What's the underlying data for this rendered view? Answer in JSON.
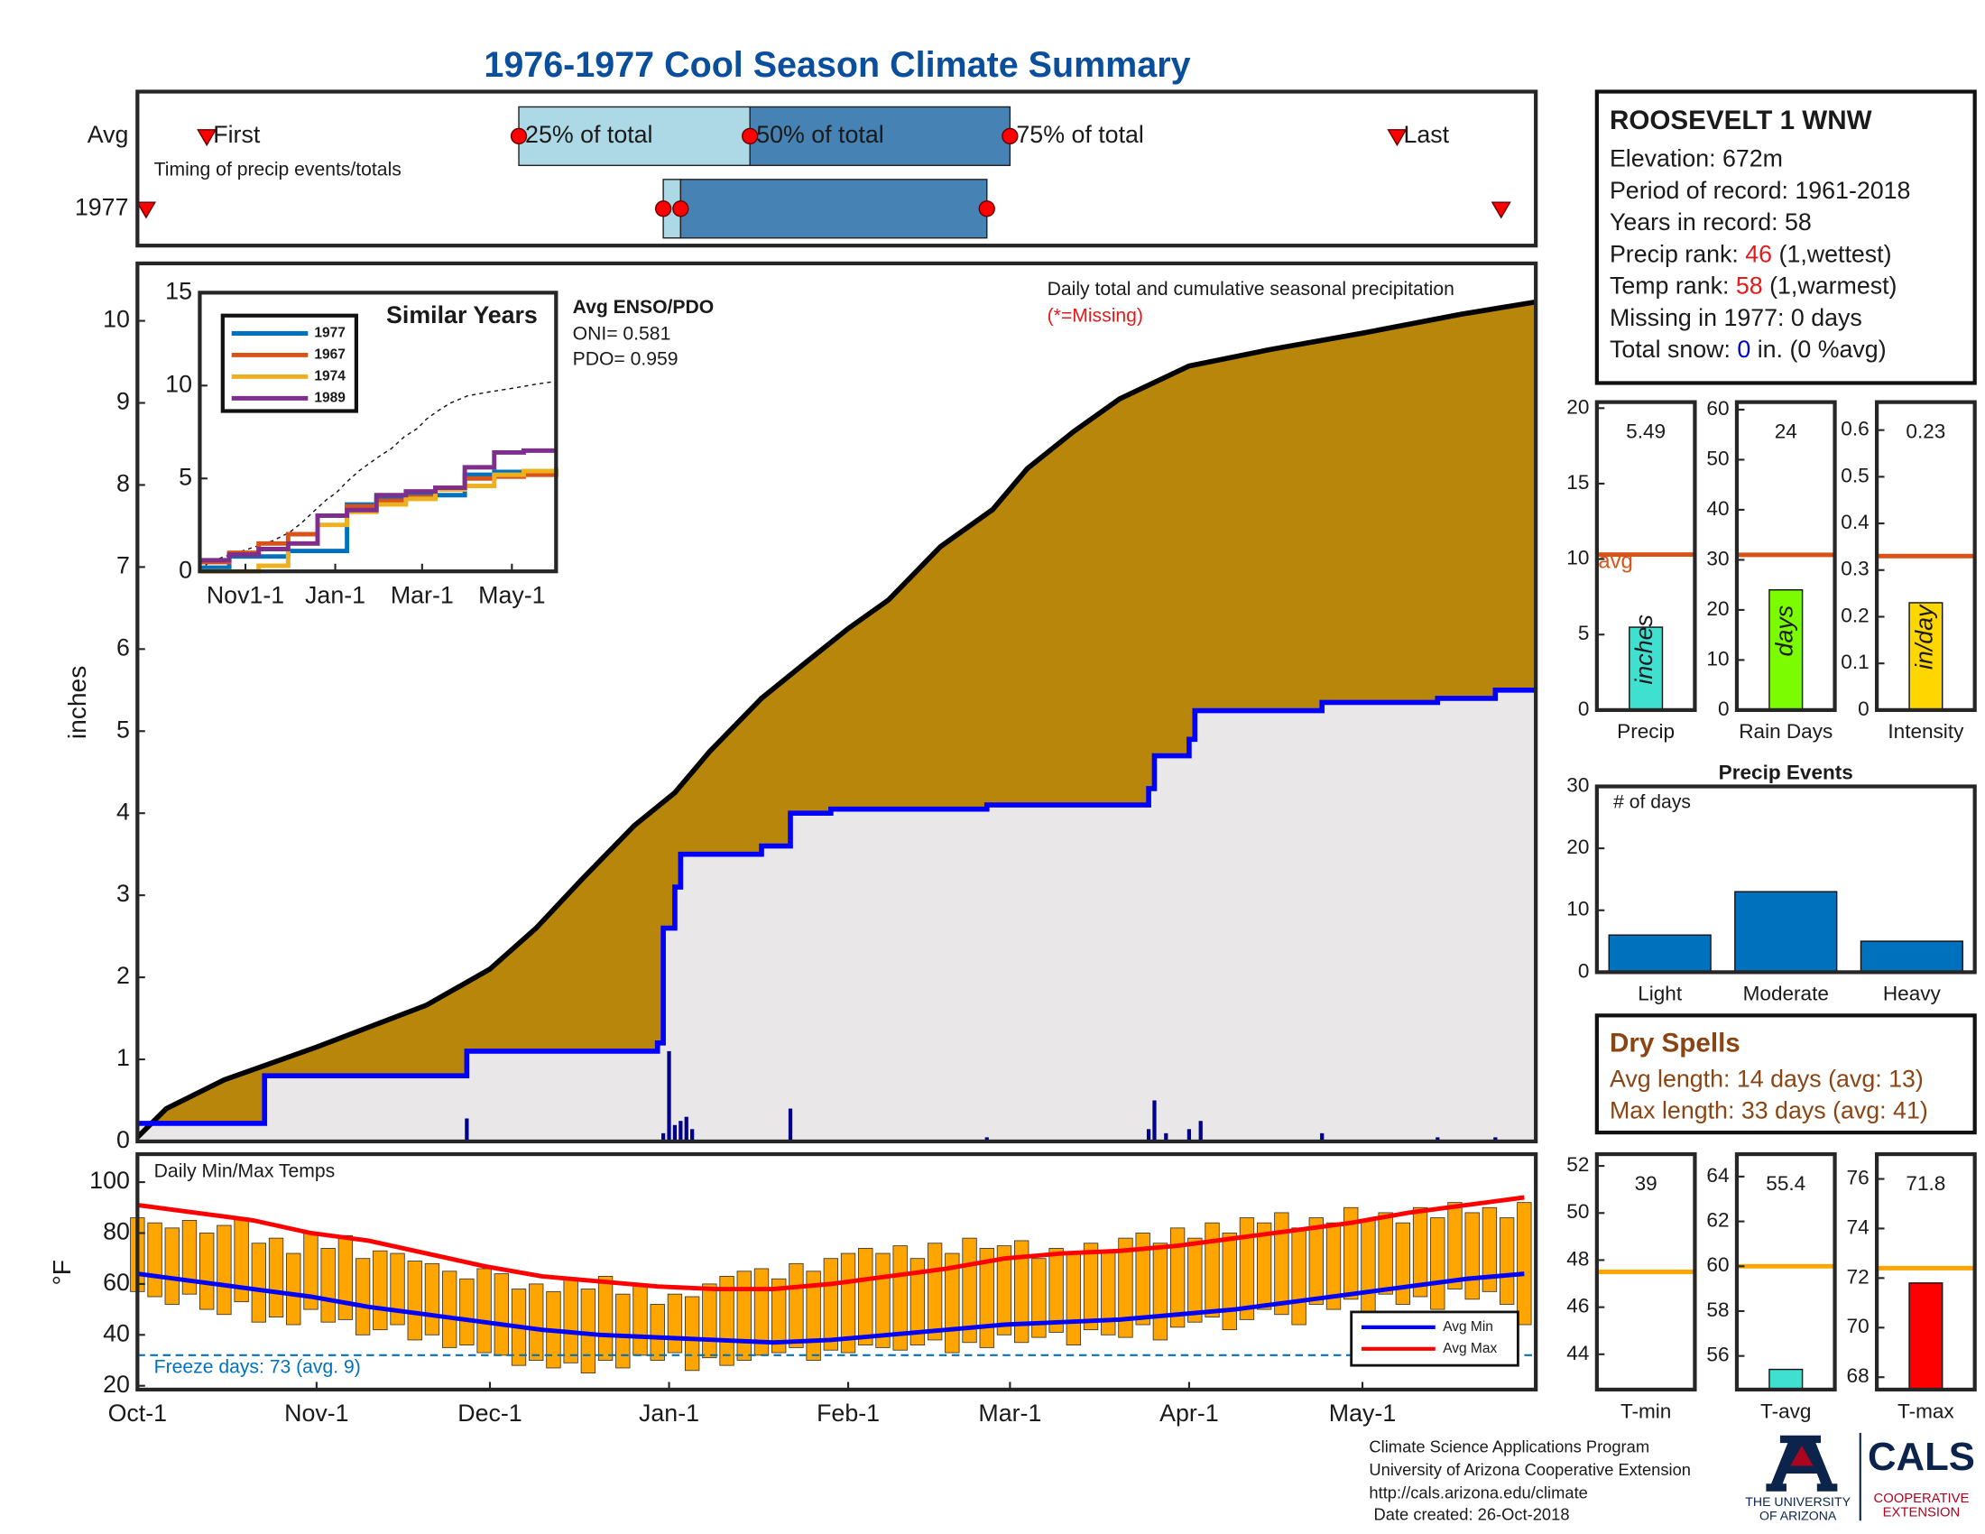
{
  "title": "1976-1977 Cool Season Climate Summary",
  "chart_data": [
    {
      "type": "timing",
      "annotation": "Timing of precip events/totals",
      "xlim": [
        0,
        242
      ],
      "marker_labels": [
        "First",
        "25% of total",
        "50% of total",
        "75% of total",
        "Last"
      ],
      "rows": [
        {
          "label": "Avg",
          "values": [
            12,
            66,
            106,
            151,
            218
          ]
        },
        {
          "label": "1977",
          "values": [
            1.5,
            91,
            94,
            147,
            236
          ]
        }
      ],
      "colors": [
        "#add8e6",
        "#4682b4",
        "#ff0000"
      ]
    },
    {
      "type": "area",
      "annotation": "Daily total and cumulative seasonal precipitation",
      "note": "(*=Missing)",
      "ylabel": "inches",
      "xlim": [
        0,
        242
      ],
      "ylim": [
        0,
        10.7
      ],
      "yticks": [
        0,
        1,
        2,
        3,
        4,
        5,
        6,
        7,
        8,
        9,
        10
      ],
      "cumulative_avg": {
        "color": "#b8860b",
        "x": [
          0,
          5,
          15,
          31,
          50,
          61,
          69,
          77,
          86,
          93,
          99,
          108,
          115,
          123,
          130,
          139,
          148,
          154,
          162,
          170,
          182,
          196,
          212,
          229,
          242
        ],
        "values": [
          0.05,
          0.4,
          0.75,
          1.15,
          1.66,
          2.1,
          2.6,
          3.2,
          3.85,
          4.25,
          4.75,
          5.4,
          5.8,
          6.25,
          6.6,
          7.25,
          7.7,
          8.2,
          8.65,
          9.05,
          9.45,
          9.65,
          9.85,
          10.08,
          10.23
        ]
      },
      "cumulative_1977": {
        "color": "#0000ff",
        "x": [
          0,
          22,
          57,
          90,
          91,
          93,
          94,
          108,
          113,
          120,
          147,
          175,
          176,
          182,
          183,
          205,
          225,
          235
        ],
        "values": [
          0.22,
          0.8,
          1.1,
          1.2,
          2.6,
          3.1,
          3.5,
          3.6,
          4.0,
          4.05,
          4.1,
          4.3,
          4.7,
          4.9,
          5.25,
          5.35,
          5.4,
          5.5
        ]
      },
      "daily": {
        "color": "#00008b",
        "x": [
          57,
          91,
          92,
          93,
          94,
          95,
          96,
          113,
          147,
          175,
          176,
          178,
          182,
          184,
          205,
          225,
          235
        ],
        "values": [
          0.28,
          0.1,
          1.1,
          0.2,
          0.25,
          0.3,
          0.15,
          0.4,
          0.05,
          0.15,
          0.5,
          0.1,
          0.15,
          0.25,
          0.1,
          0.05,
          0.05
        ]
      }
    },
    {
      "type": "line",
      "title": "Similar Years",
      "xlim": [
        0,
        242
      ],
      "ylim": [
        0,
        15
      ],
      "yticks": [
        0,
        5,
        10,
        15
      ],
      "xticks": [
        {
          "value": 31,
          "label": "Nov1-1"
        },
        {
          "value": 92,
          "label": "Jan-1"
        },
        {
          "value": 151,
          "label": "Mar-1"
        },
        {
          "value": 212,
          "label": "May-1"
        }
      ],
      "x": [
        0,
        20,
        40,
        60,
        80,
        100,
        120,
        140,
        160,
        180,
        200,
        220,
        242
      ],
      "series": [
        {
          "name": "1977",
          "color": "#0072bd",
          "values": [
            0.2,
            0.8,
            0.8,
            1.1,
            1.1,
            3.6,
            4.0,
            4.1,
            4.1,
            5.2,
            5.35,
            5.4,
            5.5
          ]
        },
        {
          "name": "1967",
          "color": "#d95319",
          "values": [
            0.5,
            1.0,
            1.5,
            2.0,
            3.0,
            3.5,
            3.8,
            4.0,
            4.5,
            5.0,
            5.1,
            5.2,
            5.3
          ]
        },
        {
          "name": "1974",
          "color": "#edb120",
          "values": [
            0,
            0,
            0.3,
            1.5,
            2.5,
            3.2,
            3.6,
            3.9,
            4.4,
            4.6,
            5.2,
            5.4,
            5.6
          ]
        },
        {
          "name": "1989",
          "color": "#7e2f8e",
          "values": [
            0.6,
            0.9,
            1.2,
            1.5,
            3.0,
            3.3,
            4.1,
            4.3,
            4.5,
            5.6,
            6.4,
            6.5,
            6.5
          ]
        }
      ],
      "enso": {
        "title": "Avg ENSO/PDO",
        "lines": [
          "ONI= 0.581",
          "PDO= 0.959"
        ]
      }
    },
    {
      "type": "range_bar",
      "title": "Daily Min/Max Temps",
      "ylabel": "°F",
      "xlim": [
        0,
        242
      ],
      "ylim": [
        18.5,
        111
      ],
      "yticks": [
        20,
        40,
        60,
        80,
        100
      ],
      "xticks": [
        {
          "value": 0,
          "label": "Oct-1"
        },
        {
          "value": 31,
          "label": "Nov-1"
        },
        {
          "value": 61,
          "label": "Dec-1"
        },
        {
          "value": 92,
          "label": "Jan-1"
        },
        {
          "value": 123,
          "label": "Feb-1"
        },
        {
          "value": 151,
          "label": "Mar-1"
        },
        {
          "value": 182,
          "label": "Apr-1"
        },
        {
          "value": 212,
          "label": "May-1"
        }
      ],
      "bar_color": "#ffa500",
      "x": [
        0,
        3,
        6,
        9,
        12,
        15,
        18,
        21,
        24,
        27,
        30,
        33,
        36,
        39,
        42,
        45,
        48,
        51,
        54,
        57,
        60,
        63,
        66,
        69,
        72,
        75,
        78,
        81,
        84,
        87,
        90,
        93,
        96,
        99,
        102,
        105,
        108,
        111,
        114,
        117,
        120,
        123,
        126,
        129,
        132,
        135,
        138,
        141,
        144,
        147,
        150,
        153,
        156,
        159,
        162,
        165,
        168,
        171,
        174,
        177,
        180,
        183,
        186,
        189,
        192,
        195,
        198,
        201,
        204,
        207,
        210,
        213,
        216,
        219,
        222,
        225,
        228,
        231,
        234,
        237,
        240
      ],
      "min": [
        57,
        55,
        52,
        56,
        50,
        48,
        53,
        45,
        47,
        44,
        50,
        45,
        46,
        40,
        42,
        44,
        38,
        40,
        35,
        36,
        33,
        32,
        28,
        30,
        27,
        29,
        25,
        30,
        27,
        32,
        30,
        33,
        26,
        31,
        28,
        30,
        32,
        33,
        35,
        30,
        34,
        33,
        36,
        35,
        34,
        36,
        38,
        33,
        37,
        35,
        40,
        37,
        39,
        41,
        36,
        42,
        40,
        39,
        44,
        38,
        43,
        45,
        47,
        42,
        46,
        50,
        48,
        44,
        52,
        50,
        54,
        48,
        56,
        52,
        55,
        50,
        58,
        54,
        57,
        52,
        44
      ],
      "max": [
        86,
        84,
        82,
        85,
        80,
        83,
        86,
        76,
        78,
        72,
        80,
        74,
        79,
        70,
        73,
        72,
        69,
        68,
        65,
        62,
        66,
        64,
        58,
        60,
        57,
        62,
        58,
        63,
        56,
        60,
        52,
        56,
        55,
        60,
        63,
        65,
        66,
        62,
        68,
        65,
        70,
        72,
        74,
        72,
        75,
        70,
        76,
        72,
        78,
        74,
        75,
        77,
        70,
        74,
        72,
        76,
        73,
        78,
        80,
        76,
        82,
        78,
        84,
        80,
        86,
        84,
        88,
        82,
        86,
        84,
        90,
        85,
        88,
        84,
        90,
        86,
        92,
        88,
        90,
        86,
        92
      ],
      "avg_lines": {
        "x": [
          0,
          10,
          20,
          30,
          40,
          50,
          60,
          70,
          80,
          90,
          100,
          110,
          120,
          130,
          140,
          150,
          160,
          170,
          180,
          190,
          200,
          210,
          220,
          230,
          240
        ],
        "series": [
          {
            "name": "Avg Min",
            "color": "#0000ff",
            "values": [
              64,
              61,
              58,
              55,
              51,
              48,
              45,
              42,
              40,
              39,
              38,
              37,
              38,
              40,
              42,
              44,
              45,
              46,
              48,
              50,
              53,
              56,
              59,
              62,
              64
            ]
          },
          {
            "name": "Avg Max",
            "color": "#ff0000",
            "values": [
              91,
              88,
              85,
              80,
              77,
              72,
              67,
              63,
              61,
              59,
              58,
              58,
              60,
              63,
              66,
              70,
              72,
              73,
              75,
              78,
              81,
              84,
              88,
              91,
              94
            ]
          }
        ]
      },
      "freeze": {
        "value": 32,
        "label": "Freeze days: 73 (avg. 9)",
        "color": "#0072bd"
      }
    },
    {
      "type": "single_bar",
      "xlabel": "Precip",
      "ylim": [
        0,
        20.4
      ],
      "yticks": [
        0,
        5,
        10,
        15,
        20
      ],
      "value": 5.49,
      "avg": 10.3,
      "avg_label": "avg",
      "unit_label": "inches",
      "color": "#40e0d0",
      "avg_color": "#d95319"
    },
    {
      "type": "single_bar",
      "xlabel": "Rain Days",
      "ylim": [
        0,
        61.5
      ],
      "yticks": [
        0,
        10,
        20,
        30,
        40,
        50,
        60
      ],
      "value": 24,
      "avg": 31,
      "unit_label": "days",
      "color": "#7cfc00",
      "avg_color": "#d95319"
    },
    {
      "type": "single_bar",
      "xlabel": "Intensity",
      "ylim": [
        0,
        0.66
      ],
      "yticks": [
        0,
        0.1,
        0.2,
        0.3,
        0.4,
        0.5,
        0.6
      ],
      "value": 0.23,
      "avg": 0.33,
      "unit_label": "in/day",
      "color": "#ffd700",
      "avg_color": "#d95319"
    },
    {
      "type": "bar",
      "title": "Precip Events",
      "annotation": "# of days",
      "categories": [
        "Light",
        "Moderate",
        "Heavy"
      ],
      "values": [
        6,
        13,
        5
      ],
      "color": "#0072bd",
      "ylim": [
        0,
        30
      ],
      "yticks": [
        0,
        10,
        20,
        30
      ]
    },
    {
      "type": "single_bar",
      "xlabel": "T-min",
      "ylim": [
        42.5,
        52.5
      ],
      "yticks": [
        44,
        46,
        48,
        50,
        52
      ],
      "value": 39,
      "avg": 47.5,
      "color": "#0000ff",
      "avg_color": "#ffa500"
    },
    {
      "type": "single_bar",
      "xlabel": "T-avg",
      "ylim": [
        54.5,
        65
      ],
      "yticks": [
        56,
        58,
        60,
        62,
        64
      ],
      "value": 55.4,
      "avg": 60,
      "color": "#40e0d0",
      "avg_color": "#ffa500"
    },
    {
      "type": "single_bar",
      "xlabel": "T-max",
      "ylim": [
        67.5,
        77
      ],
      "yticks": [
        68,
        70,
        72,
        74,
        76
      ],
      "value": 71.8,
      "avg": 72.4,
      "color": "#ff0000",
      "avg_color": "#ffa500"
    }
  ],
  "station": {
    "name": "ROOSEVELT 1 WNW",
    "lines": [
      [
        "Elevation: 672m"
      ],
      [
        "Period of record: 1961-2018"
      ],
      [
        "Years in record: 58"
      ],
      [
        "Precip rank: ",
        "46",
        " (1,wettest)"
      ],
      [
        "Temp rank: ",
        "58",
        " (1,warmest)"
      ],
      [
        "Missing in 1977: 0 days"
      ],
      [
        "Total snow: ",
        "0",
        " in. (0 %avg)"
      ]
    ]
  },
  "dry_spells": {
    "title": "Dry Spells",
    "lines": [
      "Avg length: 14 days (avg: 13)",
      "Max length: 33 days (avg: 41)"
    ]
  },
  "footer": {
    "lines": [
      "Climate Science Applications Program",
      "University of Arizona Cooperative Extension",
      "http://cals.arizona.edu/climate",
      " Date created: 26-Oct-2018"
    ],
    "university": [
      "THE UNIVERSITY",
      "OF ARIZONA"
    ],
    "cals": "CALS",
    "extension": [
      "COOPERATIVE",
      "EXTENSION"
    ]
  }
}
